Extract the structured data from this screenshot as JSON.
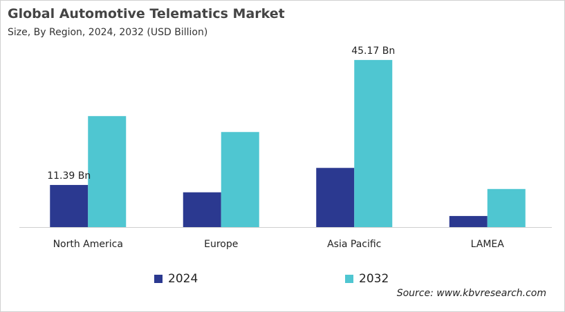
{
  "chart_data": {
    "type": "bar",
    "title": "Global Automotive Telematics Market",
    "subtitle": "Size, By Region, 2024, 2032 (USD Billion)",
    "categories": [
      "North America",
      "Europe",
      "Asia Pacific",
      "LAMEA"
    ],
    "series": [
      {
        "name": "2024",
        "color": "#2b3990",
        "values": [
          11.39,
          9.4,
          16.0,
          3.0
        ]
      },
      {
        "name": "2032",
        "color": "#4fc6d1",
        "values": [
          30.0,
          25.7,
          45.17,
          10.3
        ]
      }
    ],
    "data_labels": [
      {
        "series": 0,
        "category": 0,
        "text": "11.39 Bn"
      },
      {
        "series": 1,
        "category": 2,
        "text": "45.17 Bn"
      }
    ],
    "xlabel": "",
    "ylabel": "",
    "ylim": [
      0,
      50
    ],
    "grid": false,
    "legend": "bottom"
  },
  "source": "Source: www.kbvresearch.com"
}
